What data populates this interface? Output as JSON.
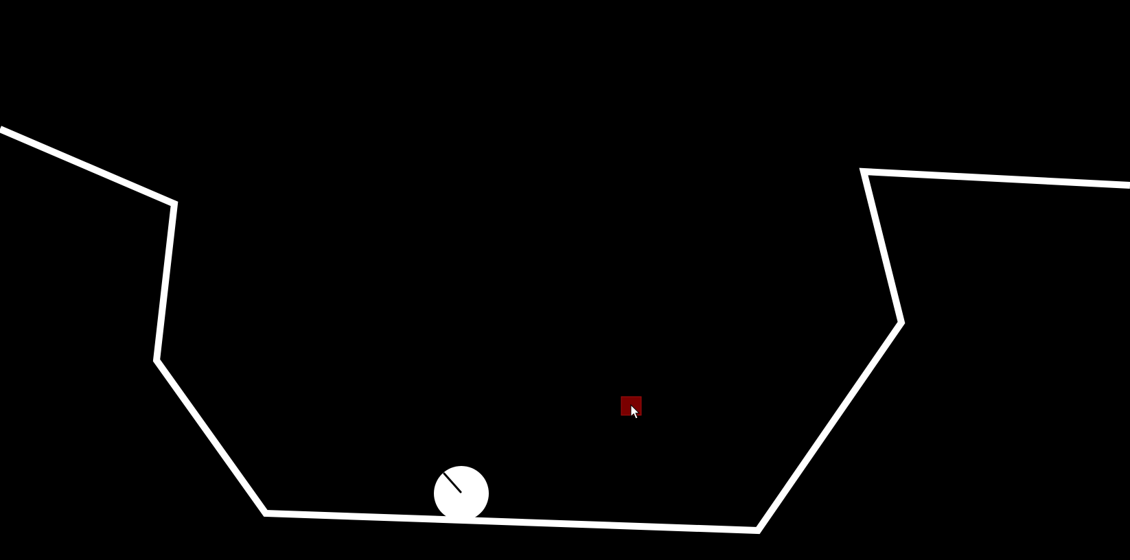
{
  "scene": {
    "name": "physics-terrain-game",
    "background_color": "#000000",
    "terrain_color": "#ffffff",
    "ball_color": "#ffffff",
    "ball_marker_color": "#000000",
    "target_color": "#7a0000",
    "target_border_color": "#a01010",
    "cursor_fill": "#ffffff",
    "cursor_stroke": "#000000"
  },
  "elements": {
    "terrain": "terrain-line",
    "ball": "ball",
    "target": "red-target-square",
    "cursor": "mouse-pointer-icon"
  }
}
